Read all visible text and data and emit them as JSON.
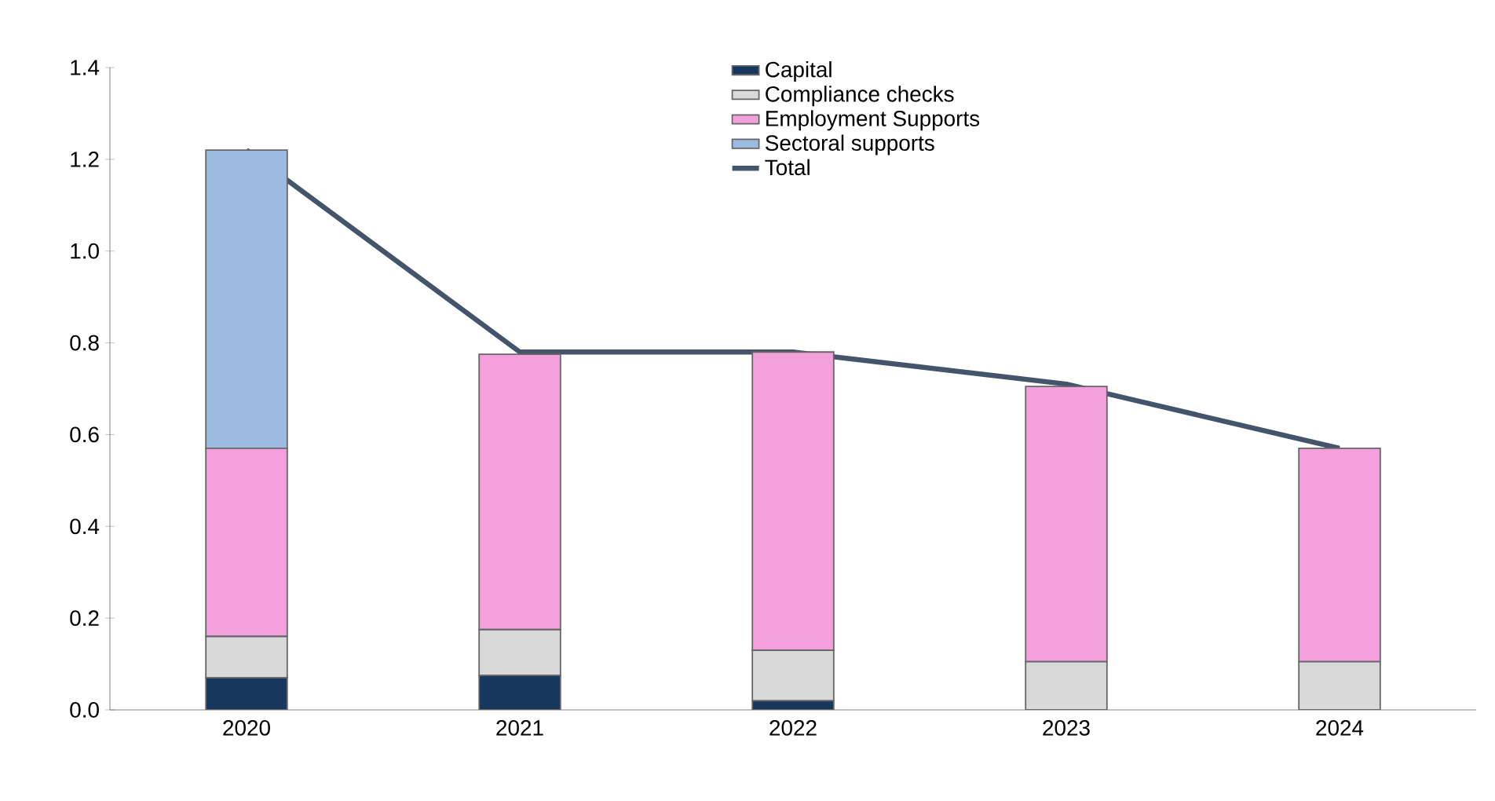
{
  "chart_data": {
    "type": "bar",
    "stacked": true,
    "categories": [
      "2020",
      "2021",
      "2022",
      "2023",
      "2024"
    ],
    "series": [
      {
        "name": "Capital",
        "color": "#17375e",
        "values": [
          0.07,
          0.075,
          0.02,
          0,
          0
        ]
      },
      {
        "name": "Compliance checks",
        "color": "#d9d9d9",
        "values": [
          0.09,
          0.1,
          0.11,
          0.105,
          0.105
        ]
      },
      {
        "name": "Employment Supports",
        "color": "#f4a0dc",
        "values": [
          0.41,
          0.6,
          0.65,
          0.6,
          0.465
        ]
      },
      {
        "name": "Sectoral supports",
        "color": "#9dbbe0",
        "values": [
          0.65,
          0,
          0,
          0,
          0
        ]
      },
      {
        "name": "Total",
        "type": "line",
        "color": "#44546a",
        "values": [
          1.22,
          0.78,
          0.78,
          0.71,
          0.57
        ]
      }
    ],
    "ylim": [
      0,
      1.4
    ],
    "yticks": [
      {
        "value": 0,
        "label": "0.0"
      },
      {
        "value": 0.2,
        "label": "0.2"
      },
      {
        "value": 0.4,
        "label": "0.4"
      },
      {
        "value": 0.6,
        "label": "0.6"
      },
      {
        "value": 0.8,
        "label": "0.8"
      },
      {
        "value": 1.0,
        "label": "1.0"
      },
      {
        "value": 1.2,
        "label": "1.2"
      },
      {
        "value": 1.4,
        "label": "1.4"
      }
    ],
    "grid": false,
    "legend": "top right"
  }
}
